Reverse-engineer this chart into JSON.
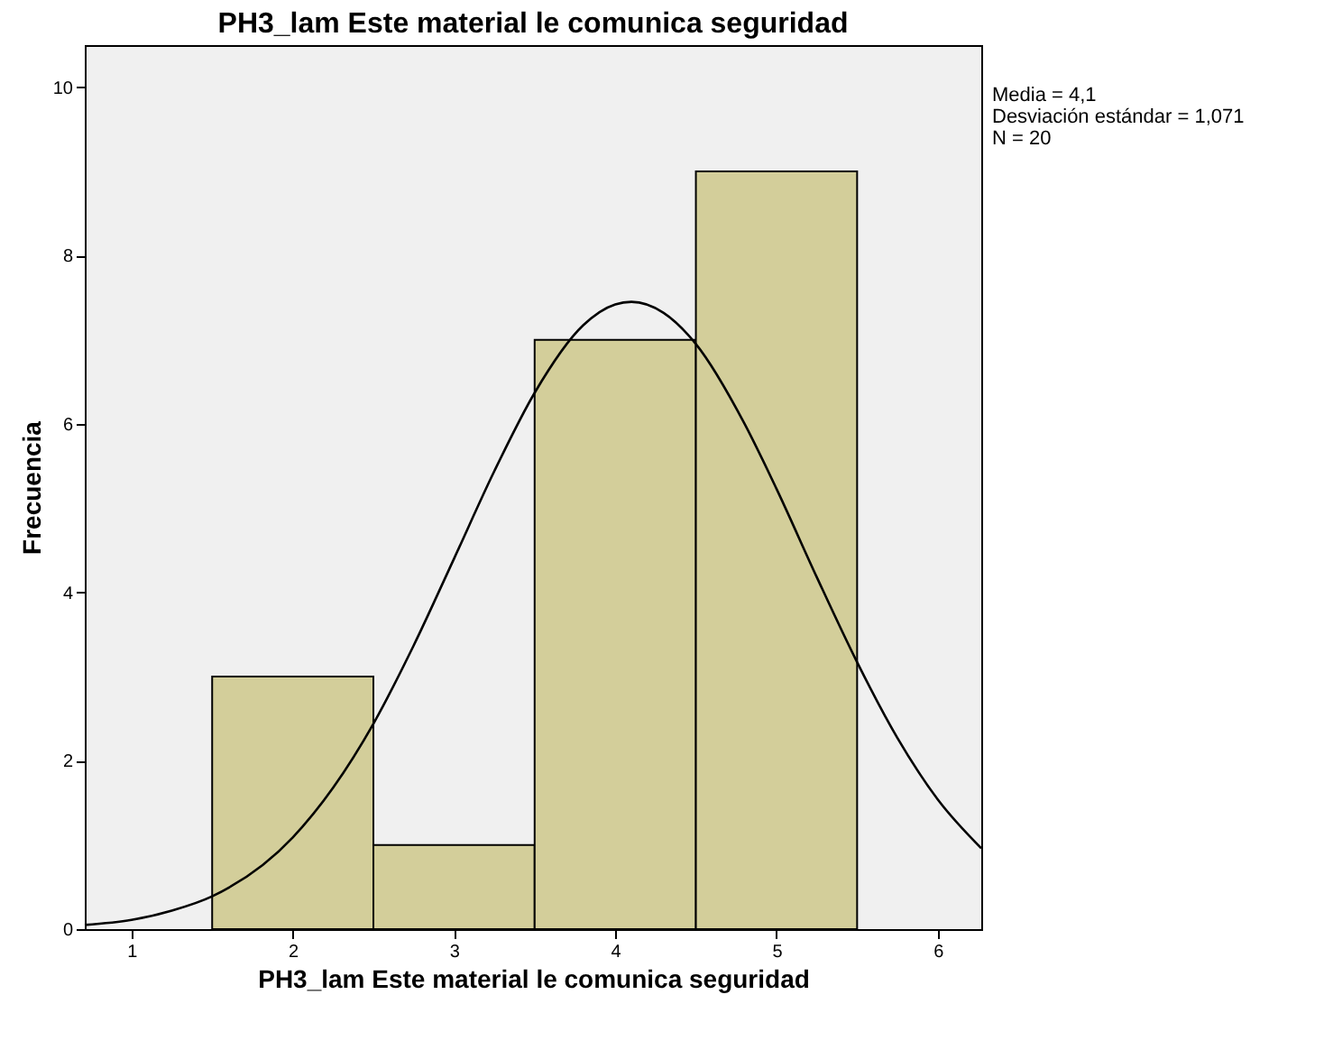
{
  "chart_data": {
    "type": "histogram",
    "title": "PH3_lam Este material le comunica seguridad",
    "xlabel": "PH3_lam Este material le comunica seguridad",
    "ylabel": "Frecuencia",
    "bins": [
      1.5,
      2.5,
      3.5,
      4.5,
      5.5
    ],
    "values": [
      3,
      1,
      7,
      9
    ],
    "color": "#d3ce9a",
    "series": [
      {
        "type": "line",
        "color": "#000000",
        "x": [
          0.71,
          1.0,
          1.25,
          1.5,
          2.0,
          2.25,
          2.5,
          2.75,
          3.0,
          3.25,
          3.5,
          3.8,
          4.0,
          4.1,
          4.3,
          4.5,
          4.8,
          5.0,
          5.25,
          5.5,
          5.75,
          6.0,
          6.27
        ],
        "values": [
          0.05,
          0.11,
          0.22,
          0.39,
          1.09,
          1.68,
          2.44,
          3.37,
          4.4,
          5.44,
          6.37,
          7.17,
          7.42,
          7.45,
          7.32,
          6.95,
          6.01,
          5.23,
          4.18,
          3.17,
          2.27,
          1.54,
          0.96
        ]
      }
    ],
    "xlim": [
      0.71,
      6.27
    ],
    "xticks": [
      1,
      2,
      3,
      4,
      5,
      6
    ],
    "ylim": [
      0,
      10.5
    ],
    "yticks": [
      0,
      2,
      4,
      6,
      8,
      10
    ],
    "grid": false,
    "annotations": [
      "Media = 4,1",
      "Desviación estándar = 1,071",
      "N = 20"
    ]
  }
}
